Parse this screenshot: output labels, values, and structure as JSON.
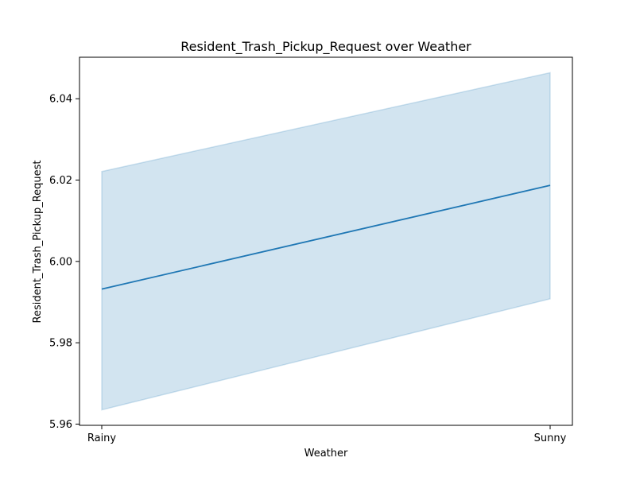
{
  "chart_data": {
    "type": "line",
    "title": "Resident_Trash_Pickup_Request over Weather",
    "xlabel": "Weather",
    "ylabel": "Resident_Trash_Pickup_Request",
    "categories": [
      "Rainy",
      "Sunny"
    ],
    "series": [
      {
        "values": [
          5.9932,
          6.0187
        ],
        "ci_lower": [
          5.9635,
          5.9908
        ],
        "ci_upper": [
          6.0221,
          6.0464
        ],
        "color": "#1f77b4",
        "band_color": "#1f77b4"
      }
    ],
    "ylim": [
      5.9597,
      6.0502
    ],
    "yticks": [
      5.96,
      5.98,
      6.0,
      6.02,
      6.04
    ],
    "ytick_labels": [
      "5.96",
      "5.98",
      "6.00",
      "6.02",
      "6.04"
    ],
    "grid": false
  }
}
